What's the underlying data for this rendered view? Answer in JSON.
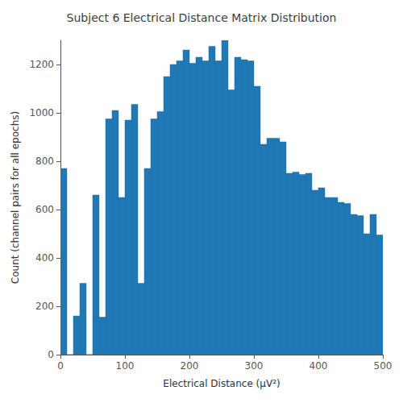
{
  "chart_data": {
    "type": "histogram",
    "title": "Subject 6 Electrical Distance Matrix Distribution",
    "xlabel": "Electrical Distance (μV²)",
    "ylabel": "Count (channel pairs for all epochs)",
    "color": "#1f77b4",
    "bins": [
      0,
      10,
      20,
      30,
      40,
      50,
      60,
      70,
      80,
      90,
      100,
      110,
      120,
      130,
      140,
      150,
      160,
      170,
      180,
      190,
      200,
      210,
      220,
      230,
      240,
      250,
      260,
      270,
      280,
      290,
      300,
      310,
      320,
      330,
      340,
      350,
      360,
      370,
      380,
      390,
      400,
      410,
      420,
      430,
      440,
      450,
      460,
      470,
      480,
      490,
      500
    ],
    "values": [
      770,
      0,
      160,
      295,
      0,
      660,
      155,
      975,
      1010,
      650,
      970,
      1035,
      295,
      770,
      975,
      1005,
      1150,
      1200,
      1215,
      1260,
      1205,
      1230,
      1215,
      1275,
      1215,
      1300,
      1095,
      1230,
      1220,
      1215,
      1110,
      870,
      895,
      895,
      880,
      750,
      755,
      745,
      750,
      680,
      690,
      650,
      650,
      630,
      625,
      580,
      575,
      500,
      580,
      495
    ],
    "xlim": [
      0,
      500
    ],
    "xticks": [
      0,
      100,
      200,
      300,
      400,
      500
    ],
    "ylim": [
      0,
      1300
    ],
    "yticks": [
      0,
      200,
      400,
      600,
      800,
      1000,
      1200
    ],
    "grid": false
  }
}
